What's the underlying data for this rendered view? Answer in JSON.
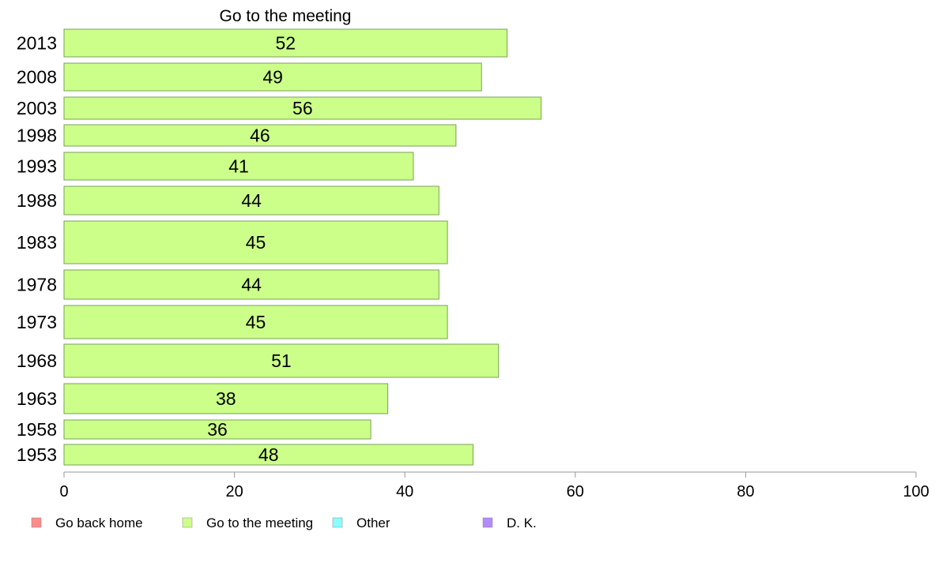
{
  "chart_data": {
    "type": "bar",
    "orientation": "horizontal",
    "title": "Go to the meeting",
    "categories": [
      "2013",
      "2008",
      "2003",
      "1998",
      "1993",
      "1988",
      "1983",
      "1978",
      "1973",
      "1968",
      "1963",
      "1958",
      "1953"
    ],
    "series": [
      {
        "name": "Go to the meeting",
        "values": [
          52,
          49,
          56,
          46,
          41,
          44,
          45,
          44,
          45,
          51,
          38,
          36,
          48
        ]
      }
    ],
    "xlim": [
      0,
      100
    ],
    "xticks": [
      0,
      20,
      40,
      60,
      80,
      100
    ],
    "grid": false,
    "legend_position": "bottom",
    "legend": [
      {
        "label": "Go back home",
        "color": "#ff8a8a"
      },
      {
        "label": "Go to the meeting",
        "color": "#ccff8a"
      },
      {
        "label": "Other",
        "color": "#8affff"
      },
      {
        "label": "D. K.",
        "color": "#b48aff"
      }
    ],
    "bar_color": "#ccff8a",
    "bar_stroke": "#7aa05a"
  }
}
